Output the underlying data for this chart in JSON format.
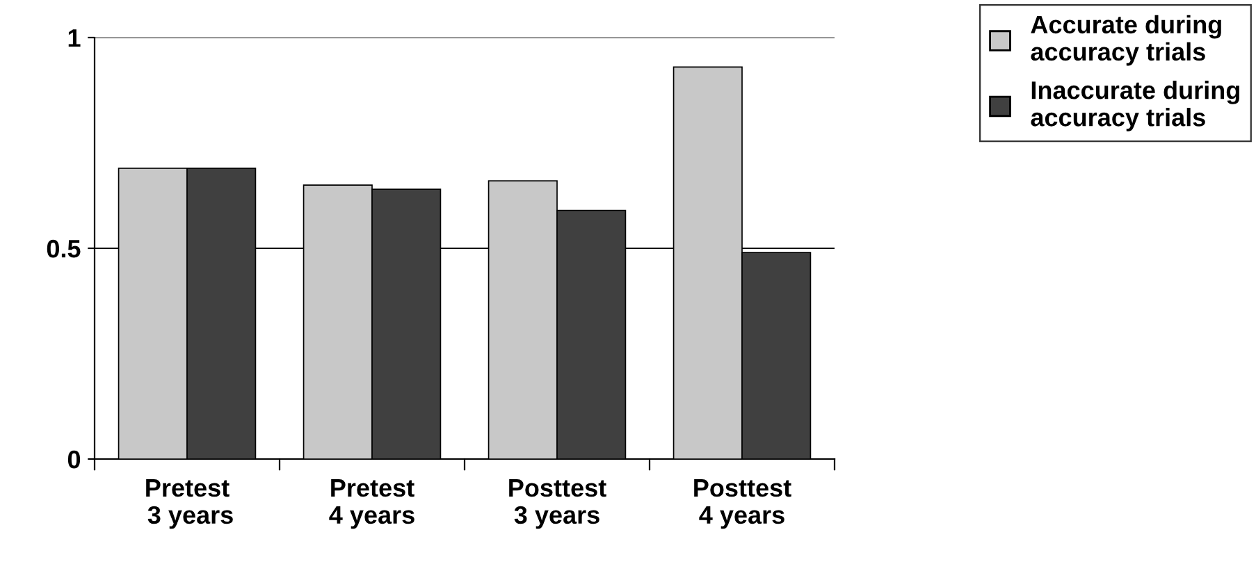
{
  "chart_data": {
    "type": "bar",
    "categories": [
      "Pretest\n 3 years",
      "Pretest\n4 years",
      "Posttest\n3 years",
      "Posttest\n4 years"
    ],
    "series": [
      {
        "name": "Accurate during\naccuracy trials",
        "color": "#c8c8c8",
        "values": [
          0.69,
          0.65,
          0.66,
          0.93
        ]
      },
      {
        "name": "Inaccurate during\naccuracy trials",
        "color": "#404040",
        "values": [
          0.69,
          0.64,
          0.59,
          0.49
        ]
      }
    ],
    "ylim": [
      0,
      1
    ],
    "yticks": [
      0,
      0.5,
      1
    ],
    "grid": "y",
    "legend": "top right"
  }
}
